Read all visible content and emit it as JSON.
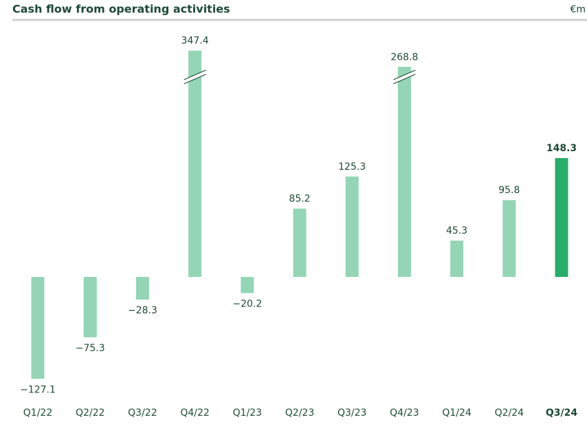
{
  "chart_data": {
    "type": "bar",
    "title": "Cash flow from operating activities",
    "unit": "€m",
    "categories": [
      "Q1/22",
      "Q2/22",
      "Q3/22",
      "Q4/22",
      "Q1/23",
      "Q2/23",
      "Q3/23",
      "Q4/23",
      "Q1/24",
      "Q2/24",
      "Q3/24"
    ],
    "values": [
      -127.1,
      -75.3,
      -28.3,
      347.4,
      -20.2,
      85.2,
      125.3,
      268.8,
      45.3,
      95.8,
      148.3
    ],
    "value_labels": [
      "−127.1",
      "−75.3",
      "−28.3",
      "347.4",
      "−20.2",
      "85.2",
      "125.3",
      "268.8",
      "45.3",
      "95.8",
      "148.3"
    ],
    "colors": [
      "#93d5b5",
      "#93d5b5",
      "#93d5b5",
      "#93d5b5",
      "#93d5b5",
      "#93d5b5",
      "#93d5b5",
      "#93d5b5",
      "#93d5b5",
      "#93d5b5",
      "#27ae6b"
    ]
  }
}
